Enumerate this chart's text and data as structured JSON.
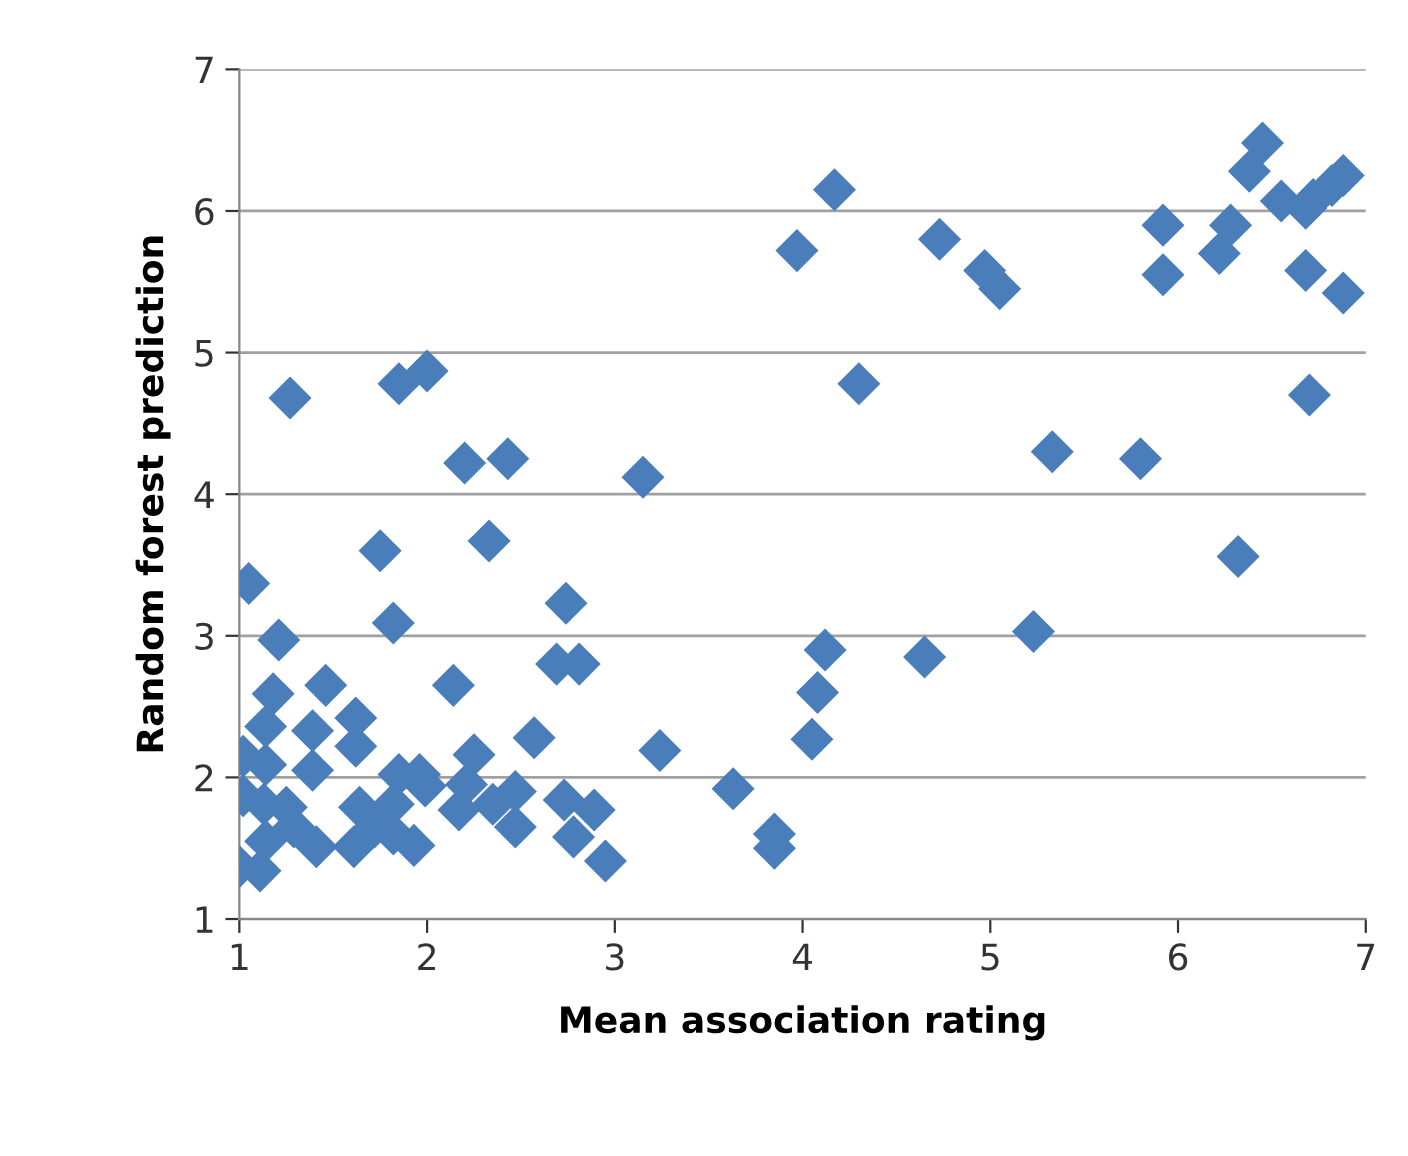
{
  "chart_data": {
    "type": "scatter",
    "xlabel": "Mean association rating",
    "ylabel": "Random forest prediction",
    "xlim": [
      1,
      7
    ],
    "ylim": [
      1,
      7
    ],
    "xticks": [
      1,
      2,
      3,
      4,
      5,
      6,
      7
    ],
    "yticks": [
      1,
      2,
      3,
      4,
      5,
      6,
      7
    ],
    "grid": "y",
    "marker": "diamond",
    "legend": false,
    "series": [
      {
        "color": "#4a7ebb",
        "x": [
          4.17,
          3.97,
          4.73,
          4.97,
          5.05,
          4.3,
          5.33,
          5.8,
          5.92,
          5.92,
          6.22,
          6.28,
          6.38,
          6.45,
          6.55,
          6.68,
          6.72,
          6.82,
          6.88,
          6.68,
          6.88,
          6.7,
          6.32,
          5.23,
          4.65,
          4.12,
          4.08,
          4.05,
          3.63,
          3.85,
          3.85,
          3.24,
          3.15,
          1.27,
          1.85,
          2.0,
          2.2,
          2.43,
          2.33,
          1.75,
          2.74,
          1.05,
          1.21,
          1.82,
          2.69,
          2.81,
          2.14,
          1.46,
          2.57,
          2.25,
          1.18,
          1.14,
          1.02,
          1.14,
          1.39,
          1.62,
          1.62,
          1.39,
          1.02,
          1.13,
          1.25,
          1.0,
          1.11,
          1.14,
          1.29,
          1.41,
          1.61,
          1.72,
          1.82,
          1.85,
          1.96,
          1.99,
          1.64,
          1.93,
          1.82,
          2.21,
          2.17,
          2.35,
          2.47,
          2.47,
          2.73,
          2.89,
          2.78,
          2.95
        ],
        "values": [
          6.15,
          5.72,
          5.8,
          5.58,
          5.45,
          4.78,
          4.3,
          4.25,
          5.9,
          5.55,
          5.7,
          5.9,
          6.28,
          6.48,
          6.07,
          6.02,
          6.08,
          6.18,
          6.25,
          5.58,
          5.42,
          4.7,
          3.56,
          3.03,
          2.85,
          2.9,
          2.6,
          2.27,
          1.92,
          1.6,
          1.5,
          2.19,
          4.12,
          4.68,
          4.78,
          4.87,
          4.22,
          4.25,
          3.67,
          3.6,
          3.23,
          3.37,
          2.97,
          3.09,
          2.8,
          2.8,
          2.65,
          2.65,
          2.28,
          2.16,
          2.59,
          2.36,
          2.15,
          2.09,
          2.33,
          2.42,
          2.22,
          2.05,
          1.87,
          1.81,
          1.79,
          1.37,
          1.34,
          1.55,
          1.65,
          1.51,
          1.51,
          1.65,
          1.81,
          2.02,
          2.02,
          1.94,
          1.79,
          1.52,
          1.6,
          1.95,
          1.77,
          1.81,
          1.9,
          1.65,
          1.84,
          1.77,
          1.58,
          1.41
        ]
      }
    ]
  }
}
